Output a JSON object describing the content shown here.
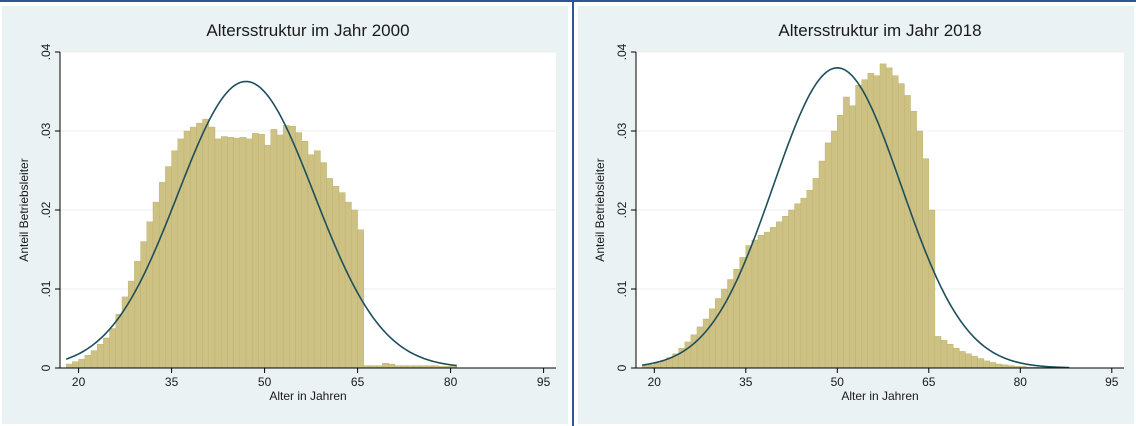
{
  "styles": {
    "bar_fill": "#cdc283",
    "bar_stroke": "#bfb372",
    "curve_color": "#1e4f5c",
    "grid_color": "#ececec",
    "panel_bg": "#eaf2f3",
    "plot_bg": "#ffffff",
    "frame_border": "#2f5597"
  },
  "chart_data": [
    {
      "type": "bar",
      "subtype": "histogram-with-normal-density",
      "title": "Altersstruktur im Jahr 2000",
      "xlabel": "Alter in Jahren",
      "ylabel": "Anteil Betriebsleiter",
      "xlim": [
        17,
        97
      ],
      "ylim": [
        0,
        0.04
      ],
      "x_ticks": [
        20,
        35,
        50,
        65,
        80,
        95
      ],
      "y_ticks": [
        0,
        0.01,
        0.02,
        0.03,
        0.04
      ],
      "y_tick_labels": [
        "0",
        ".01",
        ".02",
        ".03",
        ".04"
      ],
      "grid": true,
      "bin_start": 18,
      "bin_width": 1,
      "values": [
        0.0005,
        0.0008,
        0.0011,
        0.0016,
        0.0022,
        0.003,
        0.0038,
        0.005,
        0.0068,
        0.009,
        0.011,
        0.0135,
        0.016,
        0.0185,
        0.021,
        0.0235,
        0.0255,
        0.0275,
        0.029,
        0.03,
        0.0305,
        0.031,
        0.0315,
        0.0305,
        0.029,
        0.0293,
        0.0292,
        0.0291,
        0.0292,
        0.029,
        0.0297,
        0.0296,
        0.0282,
        0.0302,
        0.0295,
        0.0307,
        0.0306,
        0.0298,
        0.0287,
        0.027,
        0.0275,
        0.026,
        0.024,
        0.023,
        0.0222,
        0.021,
        0.02,
        0.0175,
        0.0003,
        0.0003,
        0.0003,
        0.0006,
        0.0005,
        0.0003,
        0.0003,
        0.0003,
        0.0003,
        0.0003,
        0.0003,
        0.0003,
        0.0002,
        0.0002,
        0.0002
      ],
      "normal_curve": {
        "mean": 47,
        "sd": 11
      }
    },
    {
      "type": "bar",
      "subtype": "histogram-with-normal-density",
      "title": "Altersstruktur im Jahr 2018",
      "xlabel": "Alter in Jahren",
      "ylabel": "Anteil Betriebsleiter",
      "xlim": [
        17,
        97
      ],
      "ylim": [
        0,
        0.04
      ],
      "x_ticks": [
        20,
        35,
        50,
        65,
        80,
        95
      ],
      "y_ticks": [
        0,
        0.01,
        0.02,
        0.03,
        0.04
      ],
      "y_tick_labels": [
        "0",
        ".01",
        ".02",
        ".03",
        ".04"
      ],
      "grid": true,
      "bin_start": 18,
      "bin_width": 1,
      "values": [
        0.0003,
        0.0004,
        0.0006,
        0.0009,
        0.0013,
        0.0018,
        0.0025,
        0.0033,
        0.0042,
        0.0052,
        0.0062,
        0.0075,
        0.0088,
        0.01,
        0.0112,
        0.0125,
        0.014,
        0.0155,
        0.0162,
        0.0168,
        0.0172,
        0.0178,
        0.0185,
        0.0192,
        0.02,
        0.0208,
        0.0215,
        0.0225,
        0.024,
        0.0262,
        0.0285,
        0.03,
        0.032,
        0.0343,
        0.0332,
        0.0358,
        0.0365,
        0.0373,
        0.037,
        0.0385,
        0.038,
        0.037,
        0.036,
        0.0345,
        0.0325,
        0.03,
        0.0265,
        0.02,
        0.004,
        0.0035,
        0.003,
        0.0025,
        0.0021,
        0.0018,
        0.0015,
        0.0012,
        0.0009,
        0.0007,
        0.0005,
        0.0004,
        0.0003,
        0.0002,
        0.0002,
        0.0001,
        0.0001,
        0.0001,
        0.0001,
        0.0001,
        0.0001,
        0.0001
      ],
      "normal_curve": {
        "mean": 50,
        "sd": 10.5
      }
    }
  ]
}
